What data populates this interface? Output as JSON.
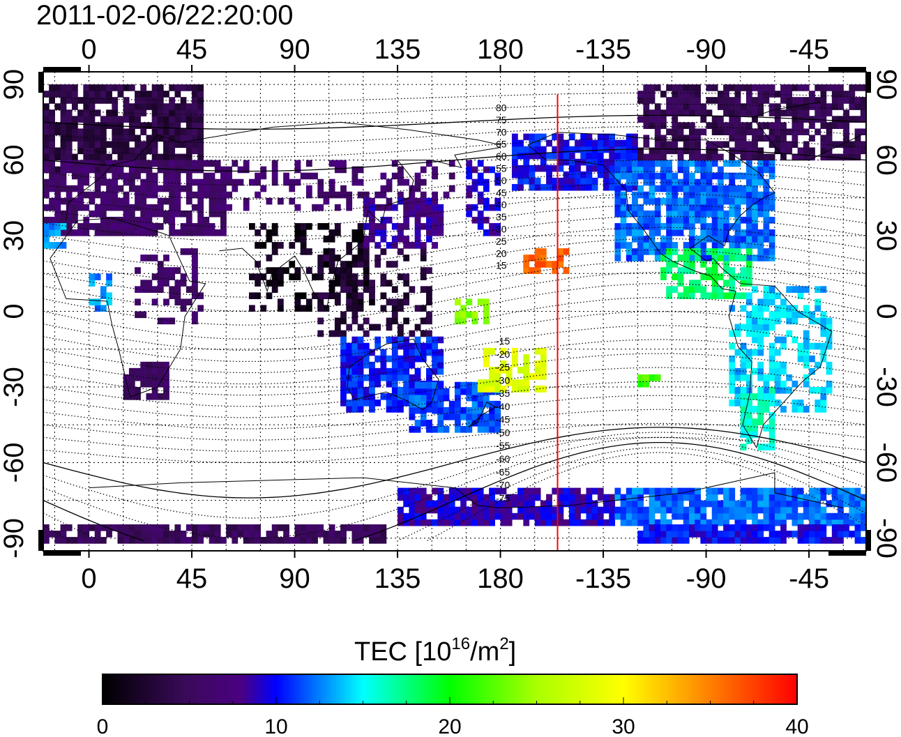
{
  "title": "2011-02-06/22:20:00",
  "x_tick_labels": [
    "0",
    "45",
    "90",
    "135",
    "180",
    "-135",
    "-90",
    "-45"
  ],
  "y_tick_labels": [
    "90",
    "60",
    "30",
    "0",
    "-30",
    "-60",
    "-90"
  ],
  "magnetic_latitude_labels": [
    "80",
    "75",
    "70",
    "65",
    "60",
    "55",
    "50",
    "45",
    "40",
    "35",
    "30",
    "25",
    "20",
    "15",
    "-15",
    "-20",
    "-25",
    "-30",
    "-35",
    "-40",
    "-45",
    "-50",
    "-55",
    "-60",
    "-65",
    "-70",
    "-75"
  ],
  "colorbar": {
    "title_main": "TEC  [10",
    "title_sup1": "16",
    "title_mid": "/m",
    "title_sup2": "2",
    "title_end": "]",
    "tick_labels": [
      "0",
      "10",
      "20",
      "30",
      "40"
    ],
    "range": [
      0,
      40
    ],
    "colors": [
      "#000000",
      "#3a0a5a",
      "#4b0082",
      "#0000ff",
      "#00ffff",
      "#00ff00",
      "#ffff00",
      "#ff7f00",
      "#ff0000"
    ]
  },
  "map": {
    "lon_range": [
      -20,
      340
    ],
    "lat_range": [
      -95,
      95
    ],
    "meridian_line_lon": -155,
    "meridian_line_color": "#ff0000"
  }
}
